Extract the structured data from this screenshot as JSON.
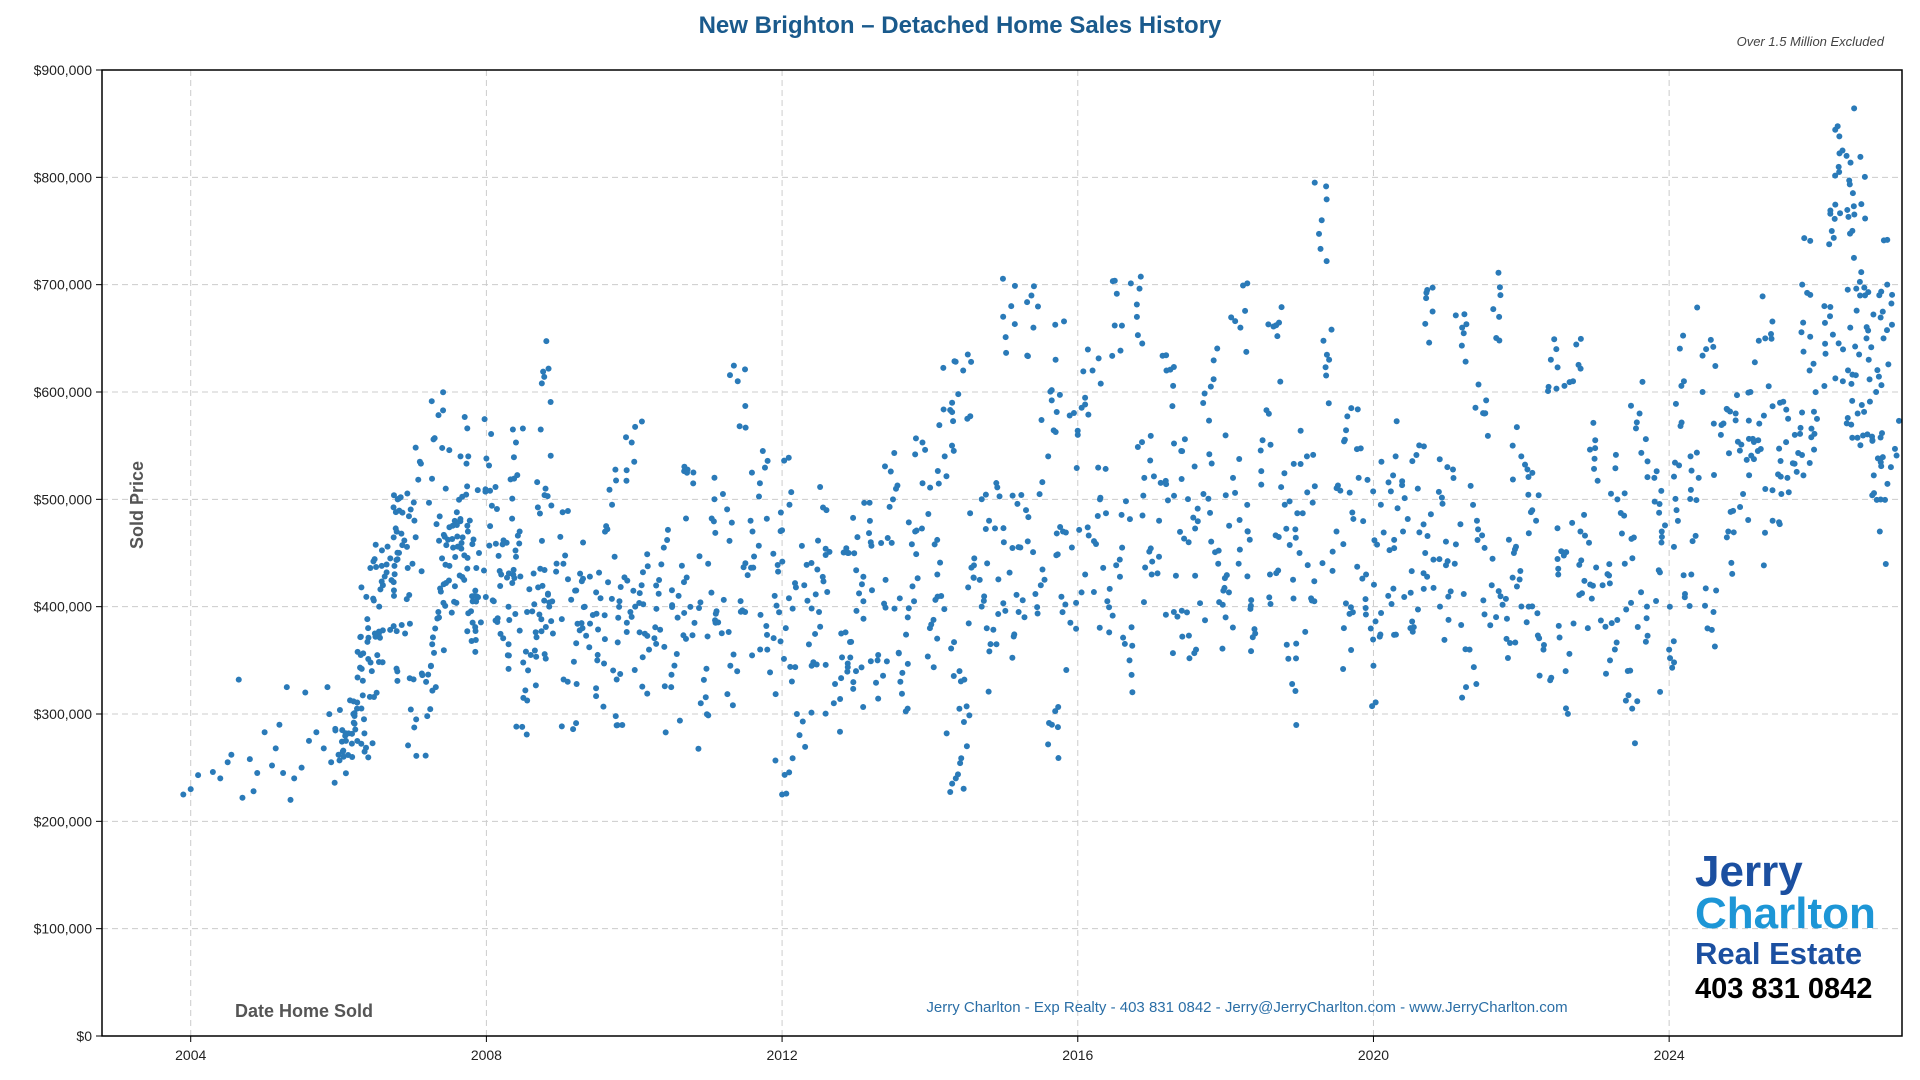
{
  "chart_data": {
    "type": "scatter",
    "title": "New Brighton – Detached Home Sales History",
    "subtitle": "Over 1.5 Million Excluded",
    "xlabel": "Date Home Sold",
    "ylabel": "Sold Price",
    "xlim": [
      2002.8,
      2027.15
    ],
    "ylim": [
      0,
      900000
    ],
    "xticks": [
      2004,
      2008,
      2012,
      2016,
      2020,
      2024
    ],
    "yticks": [
      0,
      100000,
      200000,
      300000,
      400000,
      500000,
      600000,
      700000,
      800000,
      900000
    ],
    "ytick_labels": [
      "$0",
      "$100,000",
      "$200,000",
      "$300,000",
      "$400,000",
      "$500,000",
      "$600,000",
      "$700,000",
      "$800,000",
      "$900,000"
    ],
    "grid": true,
    "point_color": "#2a7ab8",
    "footer": "Jerry Charlton - Exp Realty - 403 831 0842 - Jerry@JerryCharlton.com - www.JerryCharlton.com",
    "points": [
      [
        2003.9,
        225000
      ],
      [
        2004.0,
        230000
      ],
      [
        2004.1,
        243000
      ],
      [
        2004.3,
        246000
      ],
      [
        2004.4,
        240000
      ],
      [
        2004.5,
        255000
      ],
      [
        2004.55,
        262000
      ],
      [
        2004.65,
        332000
      ],
      [
        2004.7,
        222000
      ],
      [
        2004.8,
        258000
      ],
      [
        2004.85,
        228000
      ],
      [
        2004.9,
        245000
      ],
      [
        2005.0,
        283000
      ],
      [
        2005.1,
        252000
      ],
      [
        2005.15,
        268000
      ],
      [
        2005.2,
        290000
      ],
      [
        2005.25,
        245000
      ],
      [
        2005.3,
        325000
      ],
      [
        2005.35,
        220000
      ],
      [
        2005.4,
        240000
      ],
      [
        2005.5,
        250000
      ],
      [
        2005.55,
        320000
      ],
      [
        2005.6,
        275000
      ],
      [
        2005.7,
        283000
      ],
      [
        2005.8,
        268000
      ],
      [
        2005.85,
        325000
      ],
      [
        2005.9,
        255000
      ],
      [
        2006.0,
        262000
      ],
      [
        2006.05,
        285000
      ],
      [
        2006.1,
        275000
      ],
      [
        2006.2,
        300000
      ],
      [
        2006.25,
        305000
      ],
      [
        2006.3,
        355000
      ],
      [
        2006.35,
        282000
      ],
      [
        2006.4,
        380000
      ],
      [
        2006.45,
        340000
      ],
      [
        2006.5,
        372000
      ],
      [
        2006.55,
        400000
      ],
      [
        2006.6,
        420000
      ],
      [
        2006.65,
        432000
      ],
      [
        2006.7,
        445000
      ],
      [
        2006.75,
        410000
      ],
      [
        2006.8,
        500000
      ],
      [
        2006.85,
        468000
      ],
      [
        2006.9,
        375000
      ],
      [
        2007.0,
        440000
      ],
      [
        2007.05,
        295000
      ],
      [
        2007.1,
        535000
      ],
      [
        2007.2,
        298000
      ],
      [
        2007.25,
        345000
      ],
      [
        2007.3,
        557000
      ],
      [
        2007.35,
        395000
      ],
      [
        2007.4,
        445000
      ],
      [
        2007.45,
        510000
      ],
      [
        2007.5,
        438000
      ],
      [
        2007.55,
        455000
      ],
      [
        2007.6,
        488000
      ],
      [
        2007.65,
        540000
      ],
      [
        2007.7,
        425000
      ],
      [
        2007.75,
        470000
      ],
      [
        2007.8,
        368000
      ],
      [
        2007.85,
        415000
      ],
      [
        2007.9,
        450000
      ],
      [
        2008.0,
        538000
      ],
      [
        2008.05,
        475000
      ],
      [
        2008.1,
        405000
      ],
      [
        2008.2,
        430000
      ],
      [
        2008.3,
        365000
      ],
      [
        2008.35,
        422000
      ],
      [
        2008.4,
        553000
      ],
      [
        2008.45,
        470000
      ],
      [
        2008.5,
        315000
      ],
      [
        2008.55,
        395000
      ],
      [
        2008.6,
        355000
      ],
      [
        2008.7,
        418000
      ],
      [
        2008.75,
        608000
      ],
      [
        2008.8,
        510000
      ],
      [
        2008.85,
        400000
      ],
      [
        2008.9,
        375000
      ],
      [
        2009.0,
        465000
      ],
      [
        2009.1,
        330000
      ],
      [
        2009.2,
        415000
      ],
      [
        2009.3,
        380000
      ],
      [
        2009.4,
        428000
      ],
      [
        2009.5,
        350000
      ],
      [
        2009.6,
        392000
      ],
      [
        2009.7,
        495000
      ],
      [
        2009.75,
        298000
      ],
      [
        2009.8,
        405000
      ],
      [
        2009.9,
        385000
      ],
      [
        2010.0,
        535000
      ],
      [
        2010.1,
        420000
      ],
      [
        2010.2,
        360000
      ],
      [
        2010.3,
        398000
      ],
      [
        2010.4,
        455000
      ],
      [
        2010.5,
        325000
      ],
      [
        2010.6,
        410000
      ],
      [
        2010.7,
        370000
      ],
      [
        2010.8,
        525000
      ],
      [
        2010.9,
        310000
      ],
      [
        2011.0,
        440000
      ],
      [
        2011.1,
        385000
      ],
      [
        2011.2,
        505000
      ],
      [
        2011.3,
        345000
      ],
      [
        2011.4,
        610000
      ],
      [
        2011.5,
        395000
      ],
      [
        2011.6,
        470000
      ],
      [
        2011.7,
        515000
      ],
      [
        2011.8,
        360000
      ],
      [
        2011.9,
        410000
      ],
      [
        2012.0,
        225000
      ],
      [
        2012.05,
        380000
      ],
      [
        2012.1,
        495000
      ],
      [
        2012.2,
        300000
      ],
      [
        2012.3,
        420000
      ],
      [
        2012.4,
        345000
      ],
      [
        2012.5,
        395000
      ],
      [
        2012.6,
        490000
      ],
      [
        2012.7,
        310000
      ],
      [
        2012.8,
        375000
      ],
      [
        2012.9,
        450000
      ],
      [
        2013.0,
        340000
      ],
      [
        2013.1,
        405000
      ],
      [
        2013.2,
        460000
      ],
      [
        2013.3,
        355000
      ],
      [
        2013.4,
        425000
      ],
      [
        2013.5,
        500000
      ],
      [
        2013.6,
        330000
      ],
      [
        2013.7,
        390000
      ],
      [
        2013.8,
        470000
      ],
      [
        2013.9,
        515000
      ],
      [
        2014.0,
        380000
      ],
      [
        2014.1,
        430000
      ],
      [
        2014.2,
        540000
      ],
      [
        2014.3,
        590000
      ],
      [
        2014.35,
        240000
      ],
      [
        2014.4,
        340000
      ],
      [
        2014.45,
        620000
      ],
      [
        2014.5,
        270000
      ],
      [
        2014.6,
        445000
      ],
      [
        2014.7,
        400000
      ],
      [
        2014.8,
        480000
      ],
      [
        2014.9,
        365000
      ],
      [
        2015.0,
        460000
      ],
      [
        2015.1,
        680000
      ],
      [
        2015.2,
        395000
      ],
      [
        2015.3,
        490000
      ],
      [
        2015.4,
        660000
      ],
      [
        2015.5,
        420000
      ],
      [
        2015.6,
        540000
      ],
      [
        2015.65,
        290000
      ],
      [
        2015.7,
        630000
      ],
      [
        2015.8,
        470000
      ],
      [
        2015.9,
        385000
      ],
      [
        2016.0,
        560000
      ],
      [
        2016.1,
        430000
      ],
      [
        2016.2,
        620000
      ],
      [
        2016.3,
        500000
      ],
      [
        2016.4,
        405000
      ],
      [
        2016.5,
        662000
      ],
      [
        2016.6,
        455000
      ],
      [
        2016.7,
        350000
      ],
      [
        2016.8,
        670000
      ],
      [
        2016.9,
        520000
      ],
      [
        2017.0,
        430000
      ],
      [
        2017.1,
        480000
      ],
      [
        2017.2,
        620000
      ],
      [
        2017.3,
        395000
      ],
      [
        2017.4,
        545000
      ],
      [
        2017.5,
        460000
      ],
      [
        2017.6,
        360000
      ],
      [
        2017.7,
        505000
      ],
      [
        2017.8,
        605000
      ],
      [
        2017.9,
        440000
      ],
      [
        2018.0,
        390000
      ],
      [
        2018.1,
        520000
      ],
      [
        2018.2,
        660000
      ],
      [
        2018.3,
        470000
      ],
      [
        2018.4,
        375000
      ],
      [
        2018.5,
        555000
      ],
      [
        2018.6,
        430000
      ],
      [
        2018.7,
        652000
      ],
      [
        2018.8,
        495000
      ],
      [
        2018.9,
        328000
      ],
      [
        2019.0,
        450000
      ],
      [
        2019.1,
        540000
      ],
      [
        2019.2,
        405000
      ],
      [
        2019.3,
        760000
      ],
      [
        2019.4,
        630000
      ],
      [
        2019.5,
        470000
      ],
      [
        2019.6,
        380000
      ],
      [
        2019.7,
        585000
      ],
      [
        2019.8,
        520000
      ],
      [
        2019.9,
        430000
      ],
      [
        2020.0,
        345000
      ],
      [
        2020.1,
        495000
      ],
      [
        2020.2,
        410000
      ],
      [
        2020.3,
        540000
      ],
      [
        2020.4,
        470000
      ],
      [
        2020.5,
        380000
      ],
      [
        2020.6,
        510000
      ],
      [
        2020.7,
        450000
      ],
      [
        2020.8,
        675000
      ],
      [
        2020.9,
        400000
      ],
      [
        2021.0,
        530000
      ],
      [
        2021.1,
        440000
      ],
      [
        2021.2,
        660000
      ],
      [
        2021.3,
        360000
      ],
      [
        2021.4,
        480000
      ],
      [
        2021.5,
        580000
      ],
      [
        2021.6,
        420000
      ],
      [
        2021.7,
        670000
      ],
      [
        2021.8,
        370000
      ],
      [
        2021.9,
        450000
      ],
      [
        2022.0,
        540000
      ],
      [
        2022.1,
        400000
      ],
      [
        2022.2,
        480000
      ],
      [
        2022.3,
        360000
      ],
      [
        2022.4,
        630000
      ],
      [
        2022.5,
        430000
      ],
      [
        2022.6,
        340000
      ],
      [
        2022.7,
        610000
      ],
      [
        2022.8,
        470000
      ],
      [
        2022.9,
        380000
      ],
      [
        2023.0,
        555000
      ],
      [
        2023.1,
        420000
      ],
      [
        2023.2,
        350000
      ],
      [
        2023.3,
        500000
      ],
      [
        2023.4,
        440000
      ],
      [
        2023.5,
        305000
      ],
      [
        2023.6,
        580000
      ],
      [
        2023.7,
        400000
      ],
      [
        2023.8,
        520000
      ],
      [
        2023.9,
        470000
      ],
      [
        2024.0,
        360000
      ],
      [
        2024.1,
        490000
      ],
      [
        2024.2,
        610000
      ],
      [
        2024.3,
        430000
      ],
      [
        2024.4,
        520000
      ],
      [
        2024.5,
        640000
      ],
      [
        2024.6,
        395000
      ],
      [
        2024.7,
        560000
      ],
      [
        2024.8,
        470000
      ],
      [
        2024.9,
        580000
      ],
      [
        2025.0,
        505000
      ],
      [
        2025.1,
        600000
      ],
      [
        2025.2,
        545000
      ],
      [
        2025.3,
        650000
      ],
      [
        2025.4,
        480000
      ],
      [
        2025.5,
        590000
      ],
      [
        2025.6,
        520000
      ],
      [
        2025.7,
        560000
      ],
      [
        2025.8,
        700000
      ],
      [
        2025.9,
        620000
      ],
      [
        2026.0,
        575000
      ],
      [
        2026.1,
        680000
      ],
      [
        2026.2,
        750000
      ],
      [
        2026.3,
        805000
      ],
      [
        2026.35,
        610000
      ],
      [
        2026.4,
        820000
      ],
      [
        2026.45,
        660000
      ],
      [
        2026.5,
        725000
      ],
      [
        2026.55,
        580000
      ],
      [
        2026.6,
        775000
      ],
      [
        2026.65,
        690000
      ],
      [
        2026.7,
        630000
      ],
      [
        2026.75,
        555000
      ],
      [
        2026.8,
        600000
      ],
      [
        2026.85,
        470000
      ],
      [
        2026.9,
        650000
      ],
      [
        2026.95,
        700000
      ],
      [
        2027.0,
        530000
      ]
    ]
  },
  "logo": {
    "line1": "Jerry",
    "line2": "Charlton",
    "line3": "Real Estate",
    "line4": "403 831 0842"
  }
}
